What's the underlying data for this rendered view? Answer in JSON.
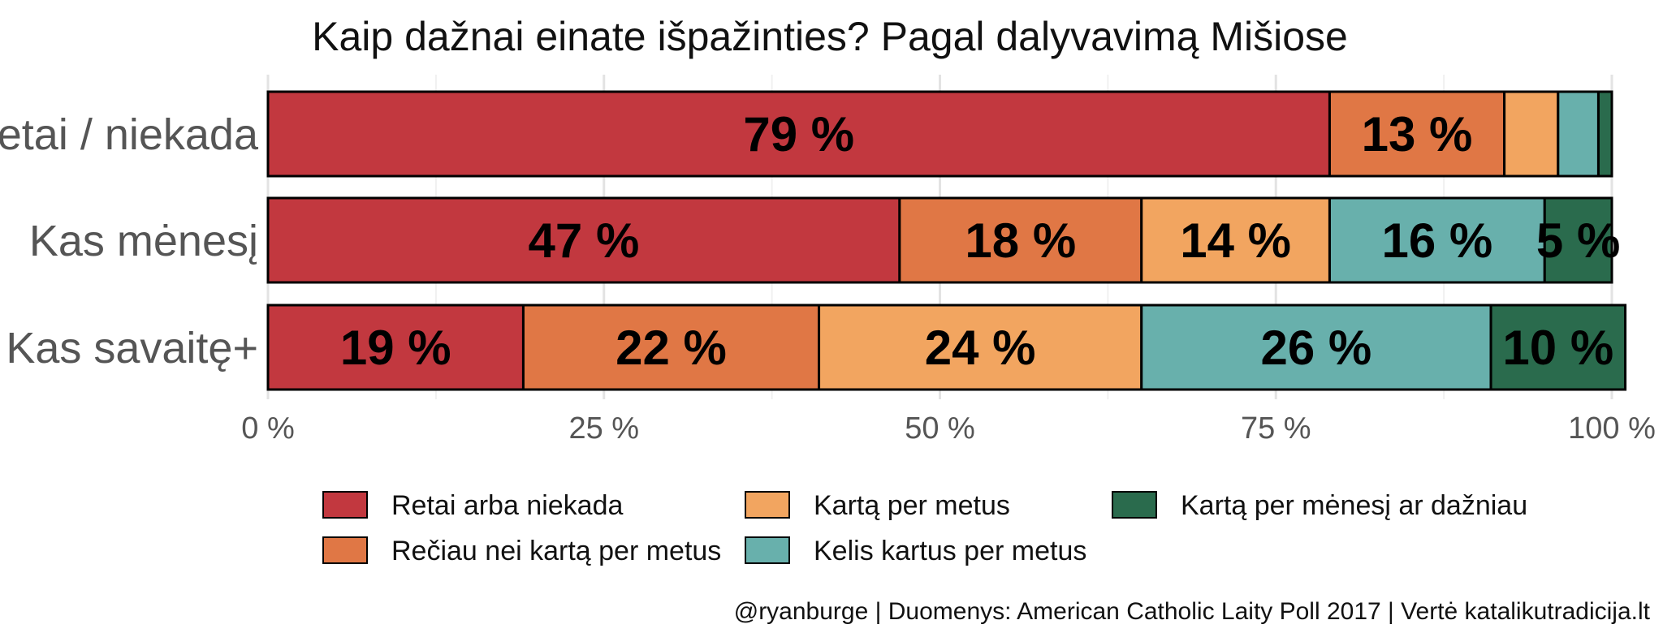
{
  "chart_data": {
    "type": "bar",
    "orientation": "horizontal",
    "stacked": true,
    "title": "Kaip dažnai einate išpažinties? Pagal dalyvavimą Mišiose",
    "caption": "@ryanburge | Duomenys: American Catholic Laity Poll 2017 | Vertė katalikutradicija.lt",
    "categories": [
      "Retai / niekada",
      "Kas mėnesį",
      "Kas savaitę+"
    ],
    "xlim": [
      0,
      100
    ],
    "x_ticks": [
      0,
      25,
      50,
      75,
      100
    ],
    "x_tick_labels": [
      "0 %",
      "25 %",
      "50 %",
      "75 %",
      "100 %"
    ],
    "grid": true,
    "legend_position": "bottom",
    "series": [
      {
        "name": "Retai arba niekada",
        "color": "#c2383f",
        "values": [
          79,
          47,
          19
        ],
        "labels": [
          "79 %",
          "47 %",
          "19 %"
        ]
      },
      {
        "name": "Rečiau nei kartą per metus",
        "color": "#e07745",
        "values": [
          13,
          18,
          22
        ],
        "labels": [
          "13 %",
          "18 %",
          "22 %"
        ]
      },
      {
        "name": "Kartą per metus",
        "color": "#f2a560",
        "values": [
          4,
          14,
          24
        ],
        "labels": [
          "",
          "14 %",
          "24 %"
        ]
      },
      {
        "name": "Kelis kartus per metus",
        "color": "#68b0ac",
        "values": [
          3,
          16,
          26
        ],
        "labels": [
          "",
          "16 %",
          "26 %"
        ]
      },
      {
        "name": "Kartą per mėnesį ar dažniau",
        "color": "#2a6b4d",
        "values": [
          1,
          5,
          10
        ],
        "labels": [
          "",
          "5 %",
          "10 %"
        ]
      }
    ]
  }
}
